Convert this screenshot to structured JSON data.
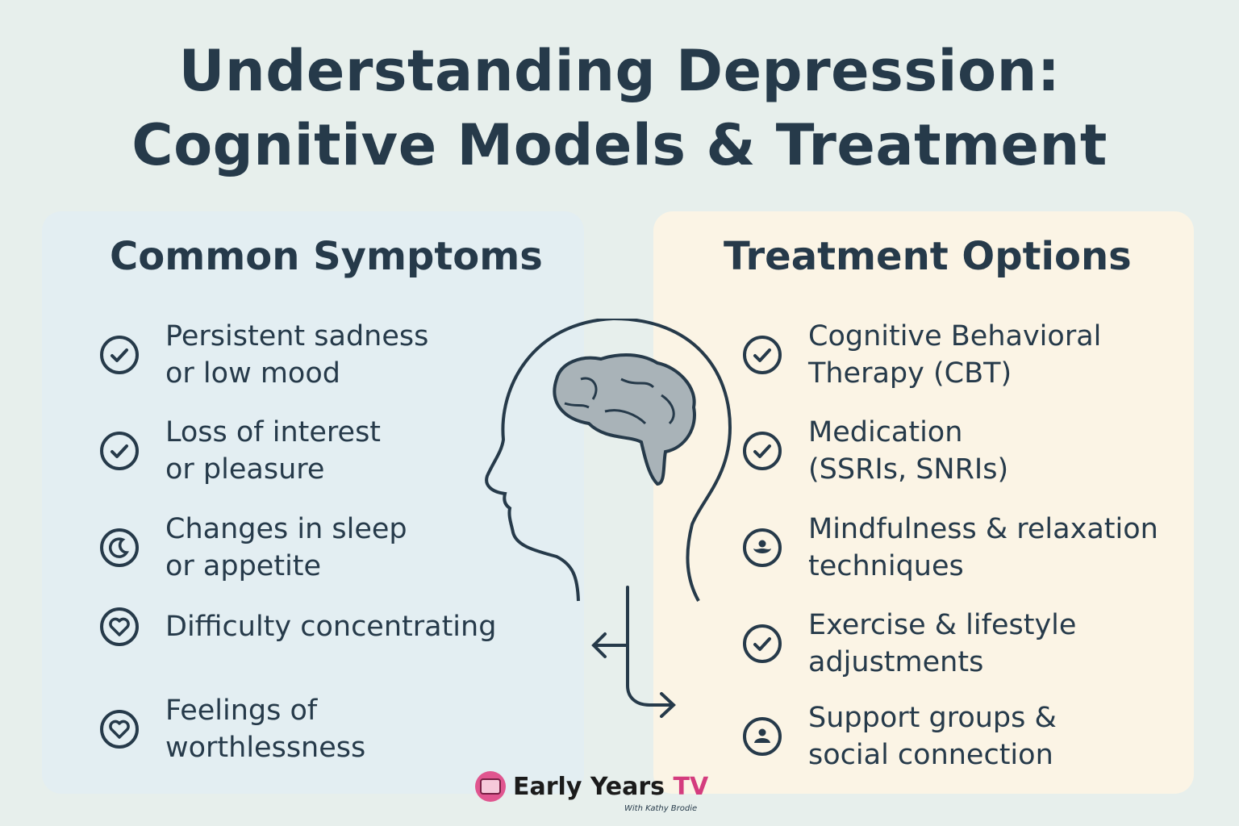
{
  "title": {
    "line1": "Understanding Depression:",
    "line2": "Cognitive Models & Treatment"
  },
  "symptoms": {
    "heading": "Common Symptoms",
    "items": [
      {
        "icon": "check-circle-icon",
        "line1": "Persistent sadness",
        "line2": "or low mood"
      },
      {
        "icon": "check-circle-icon",
        "line1": "Loss of interest",
        "line2": "or pleasure"
      },
      {
        "icon": "moon-circle-icon",
        "line1": "Changes in sleep",
        "line2": "or appetite"
      },
      {
        "icon": "heart-circle-icon",
        "line1": "Difficulty concentrating",
        "line2": ""
      },
      {
        "icon": "heart-circle-icon",
        "line1": "Feelings of",
        "line2": "worthlessness"
      }
    ]
  },
  "treatments": {
    "heading": "Treatment Options",
    "items": [
      {
        "icon": "check-circle-icon",
        "line1": "Cognitive Behavioral",
        "line2": "Therapy (CBT)"
      },
      {
        "icon": "check-circle-icon",
        "line1": "Medication",
        "line2": "(SSRIs, SNRIs)"
      },
      {
        "icon": "meditation-circle-icon",
        "line1": "Mindfulness & relaxation",
        "line2": "techniques"
      },
      {
        "icon": "check-circle-icon",
        "line1": "Exercise & lifestyle",
        "line2": "adjustments"
      },
      {
        "icon": "person-circle-icon",
        "line1": "Support groups &",
        "line2": "social connection"
      }
    ]
  },
  "logo": {
    "name": "Early Years",
    "tv": "TV",
    "sub": "With Kathy Brodie"
  },
  "colors": {
    "text": "#263a4a",
    "background": "#e7efec",
    "left_panel": "#e3eef2",
    "right_panel": "#fbf4e5",
    "brain": "#a9b3b8",
    "logo_accent": "#d43c7e"
  }
}
